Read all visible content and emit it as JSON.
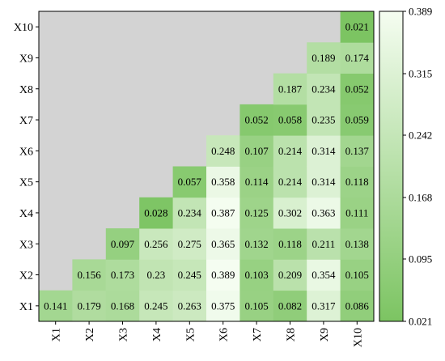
{
  "chart_data": {
    "type": "heatmap",
    "title": "",
    "xlabel": "",
    "ylabel": "",
    "x_categories": [
      "X1",
      "X2",
      "X3",
      "X4",
      "X5",
      "X6",
      "X7",
      "X8",
      "X9",
      "X10"
    ],
    "y_categories": [
      "X1",
      "X2",
      "X3",
      "X4",
      "X5",
      "X6",
      "X7",
      "X8",
      "X9",
      "X10"
    ],
    "lower_triangle_matrix": [
      [
        "0.141"
      ],
      [
        "0.179",
        "0.156"
      ],
      [
        "0.168",
        "0.173",
        "0.097"
      ],
      [
        "0.245",
        "0.23",
        "0.256",
        "0.028"
      ],
      [
        "0.263",
        "0.245",
        "0.275",
        "0.234",
        "0.057"
      ],
      [
        "0.375",
        "0.389",
        "0.365",
        "0.387",
        "0.358",
        "0.248"
      ],
      [
        "0.105",
        "0.103",
        "0.132",
        "0.125",
        "0.114",
        "0.107",
        "0.052"
      ],
      [
        "0.082",
        "0.209",
        "0.118",
        "0.302",
        "0.214",
        "0.214",
        "0.058",
        "0.187"
      ],
      [
        "0.317",
        "0.354",
        "0.211",
        "0.363",
        "0.314",
        "0.314",
        "0.235",
        "0.234",
        "0.189"
      ],
      [
        "0.086",
        "0.105",
        "0.138",
        "0.111",
        "0.118",
        "0.137",
        "0.059",
        "0.052",
        "0.174",
        "0.021"
      ]
    ],
    "matrix_note_rows": "row index i = variable X(i+1), column index j = variable X(j+1), j <= i",
    "empty_cell_color": "#d3d3d3",
    "colormap": {
      "low": "#7cc462",
      "high": "#f5fdf1"
    },
    "colorbar": {
      "min": 0.021,
      "max": 0.389,
      "ticks": [
        "0.021",
        "0.095",
        "0.168",
        "0.242",
        "0.315",
        "0.389"
      ]
    }
  }
}
